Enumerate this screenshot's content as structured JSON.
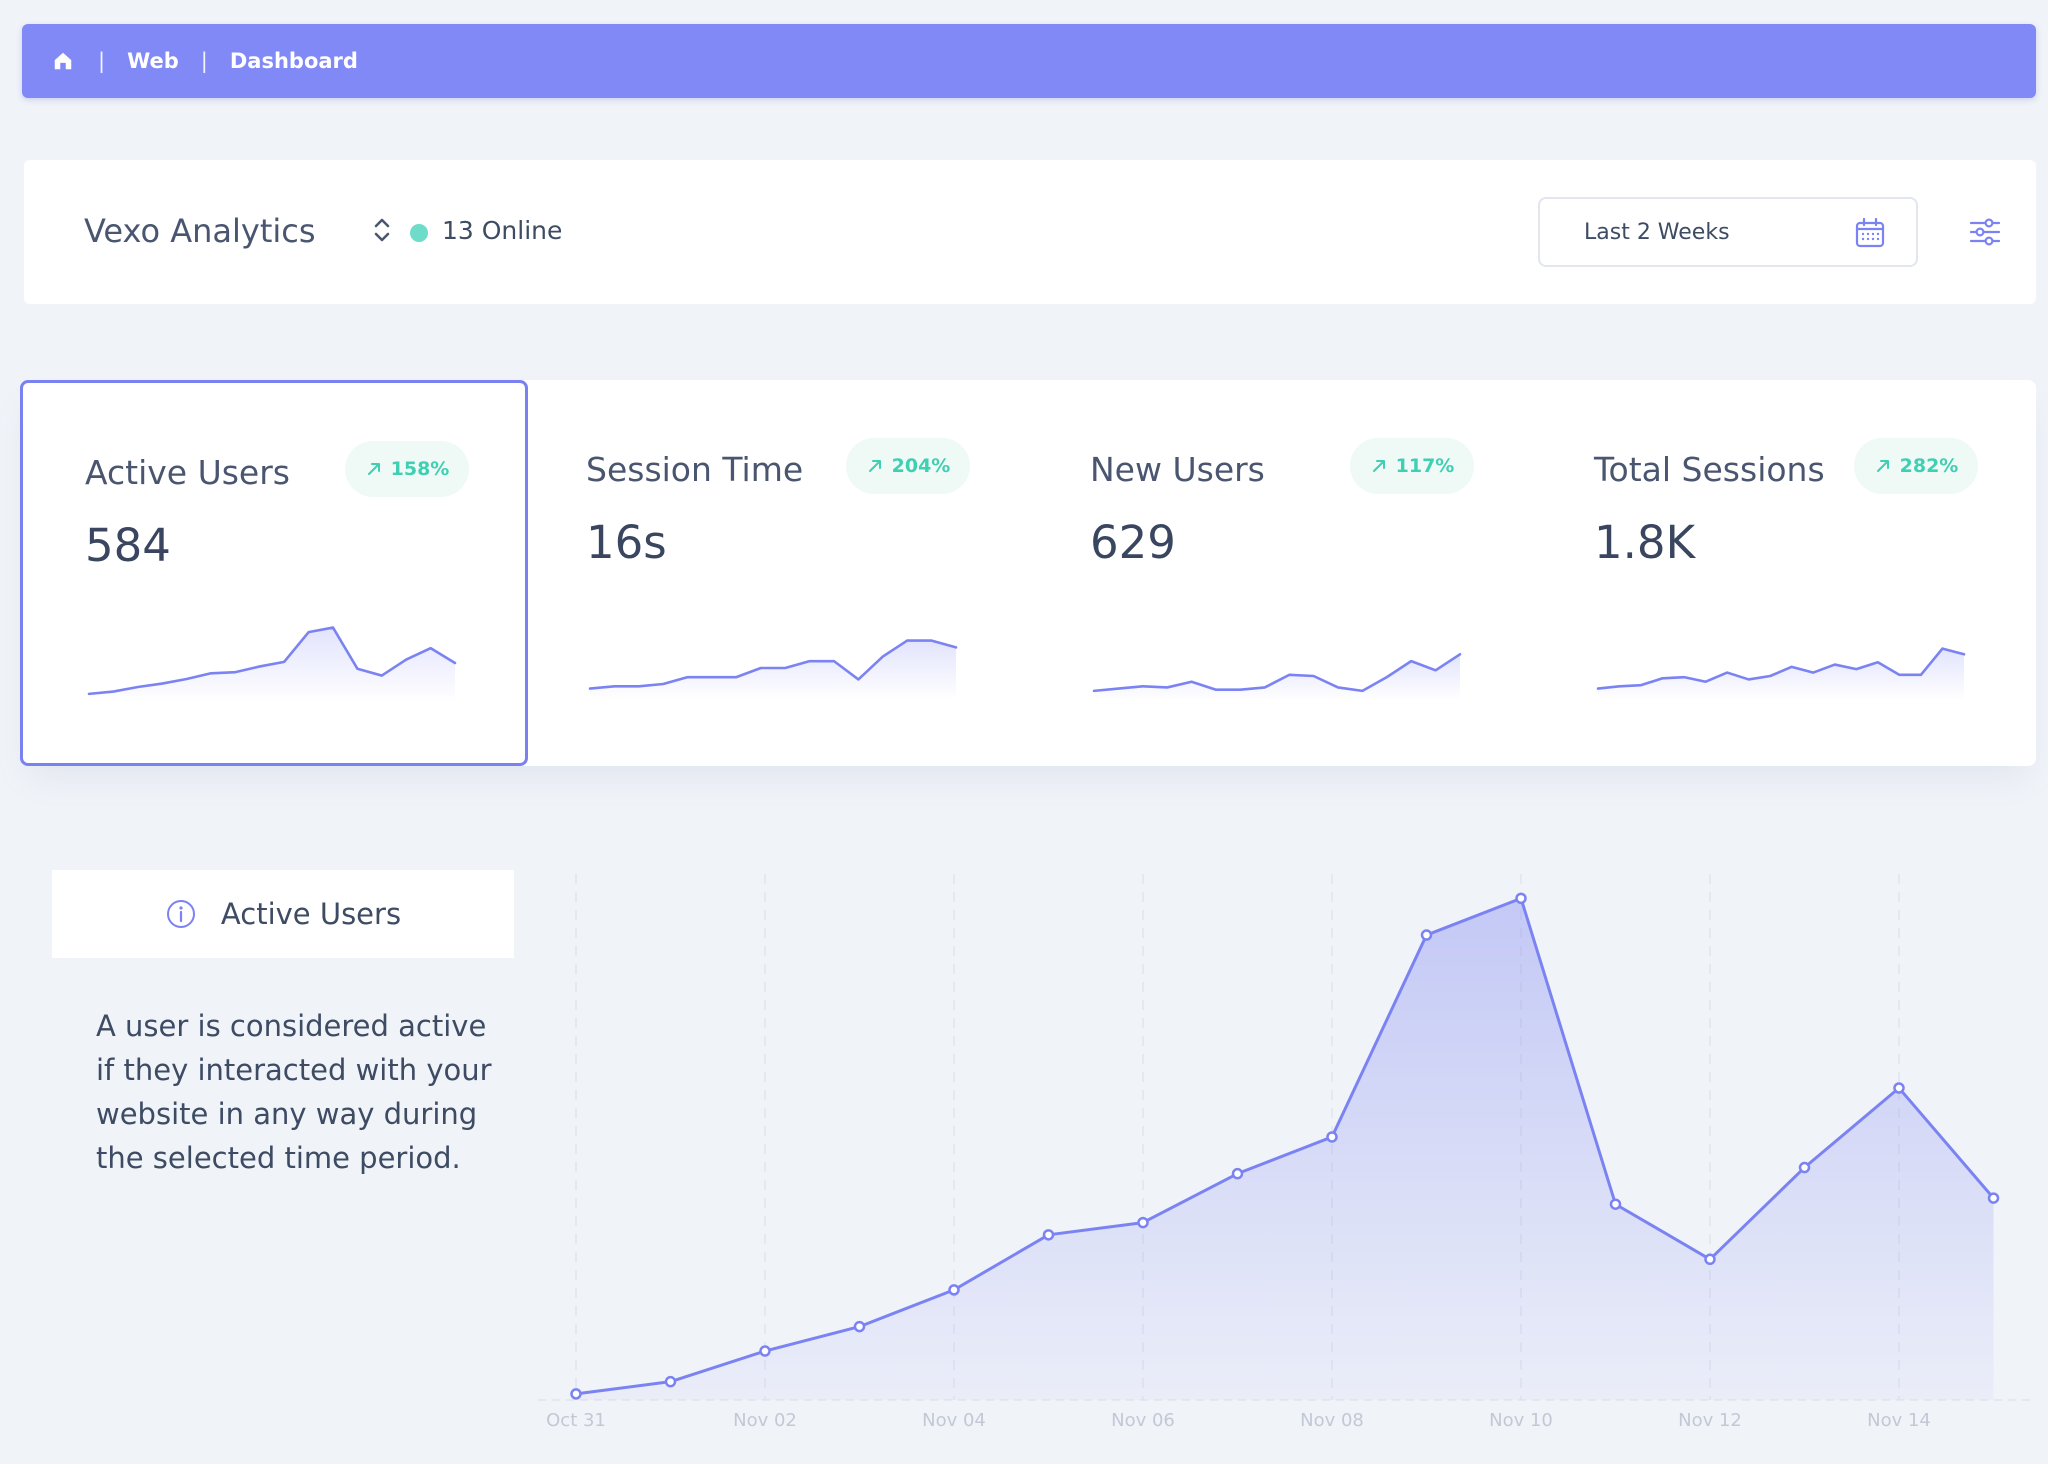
{
  "breadcrumb": {
    "home_icon": "home-icon",
    "items": [
      "Web",
      "Dashboard"
    ]
  },
  "header": {
    "app_name": "Vexo Analytics",
    "online_count": "13 Online",
    "date_range": "Last 2 Weeks",
    "icons": [
      "chevron-updown-icon",
      "calendar-icon",
      "sliders-icon"
    ]
  },
  "stats": [
    {
      "title": "Active Users",
      "value": "584",
      "change": "158%"
    },
    {
      "title": "Session Time",
      "value": "16s",
      "change": "204%"
    },
    {
      "title": "New Users",
      "value": "629",
      "change": "117%"
    },
    {
      "title": "Total Sessions",
      "value": "1.8K",
      "change": "282%"
    }
  ],
  "info": {
    "title": "Active Users",
    "description": "A user is considered active if they interacted with your website in any way during the selected time period."
  },
  "colors": {
    "accent": "#7b83f3",
    "positive": "#3fcfb3",
    "online": "#6fdcc9",
    "background": "#f0f3f8"
  },
  "chart_data": {
    "type": "area",
    "x": [
      "Oct 31",
      "Nov 01",
      "Nov 02",
      "Nov 03",
      "Nov 04",
      "Nov 05",
      "Nov 06",
      "Nov 07",
      "Nov 08",
      "Nov 09",
      "Nov 10",
      "Nov 11",
      "Nov 12",
      "Nov 13",
      "Nov 14",
      "Nov 15"
    ],
    "tick_labels": [
      "Oct 31",
      "Nov 02",
      "Nov 04",
      "Nov 06",
      "Nov 08",
      "Nov 10",
      "Nov 12",
      "Nov 14"
    ],
    "series": [
      {
        "values": [
          2,
          6,
          16,
          24,
          36,
          54,
          58,
          74,
          86,
          152,
          164,
          64,
          46,
          76,
          102,
          66
        ]
      }
    ],
    "ylim": [
      0,
      170
    ],
    "grid": "vertical-dashed",
    "sparklines": [
      [
        8,
        10,
        14,
        17,
        21,
        26,
        27,
        32,
        36,
        62,
        66,
        30,
        24,
        38,
        48,
        35
      ],
      [
        10,
        12,
        12,
        14,
        20,
        20,
        20,
        28,
        28,
        34,
        34,
        18,
        38,
        52,
        52,
        46
      ],
      [
        8,
        10,
        12,
        11,
        16,
        9,
        9,
        11,
        22,
        21,
        11,
        8,
        20,
        34,
        26,
        40
      ],
      [
        10,
        12,
        13,
        19,
        20,
        16,
        24,
        18,
        21,
        29,
        24,
        31,
        27,
        33,
        22,
        22,
        45,
        40
      ]
    ]
  }
}
